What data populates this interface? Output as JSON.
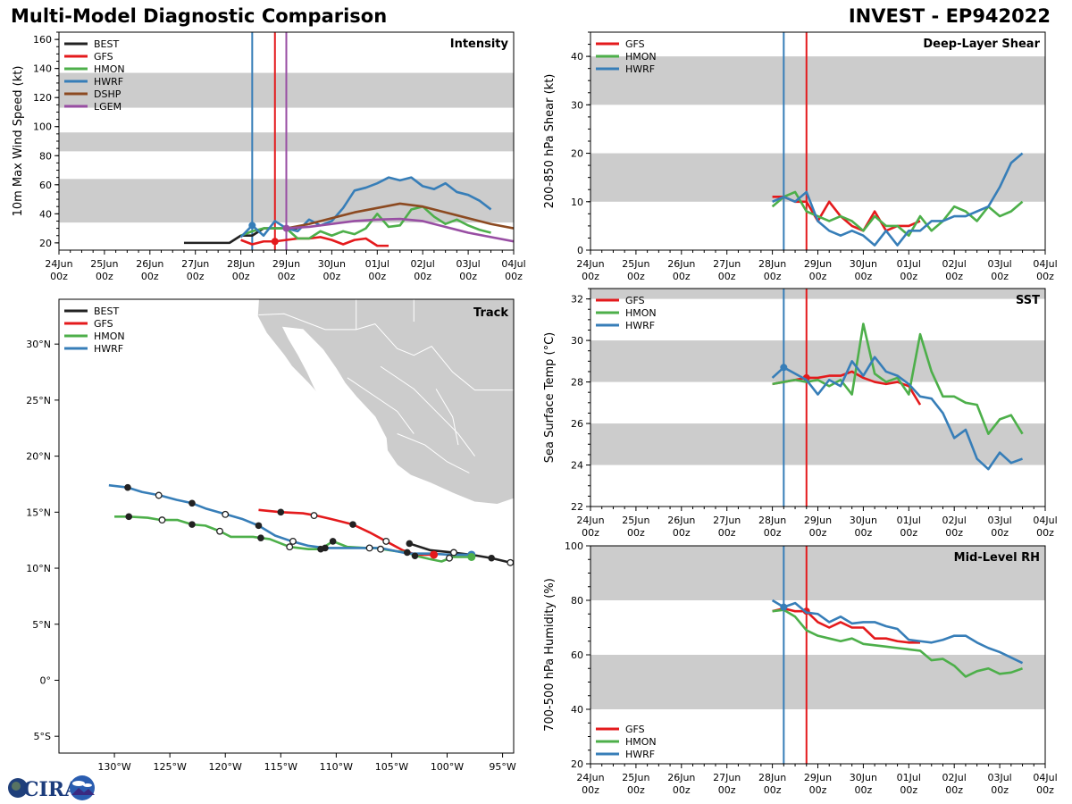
{
  "header": {
    "title_left": "Multi-Model Diagnostic Comparison",
    "title_right": "INVEST - EP942022"
  },
  "colors": {
    "BEST": "#222222",
    "GFS": "#e41a1c",
    "HMON": "#4daf4a",
    "HWRF": "#377eb8",
    "DSHP": "#8c4a21",
    "LGEM": "#984ea3",
    "band": "#cccccc",
    "land": "#cccccc"
  },
  "time_axis": {
    "start_day": 0,
    "end_day": 10,
    "tick_labels": [
      [
        "24Jun",
        "00z"
      ],
      [
        "25Jun",
        "00z"
      ],
      [
        "26Jun",
        "00z"
      ],
      [
        "27Jun",
        "00z"
      ],
      [
        "28Jun",
        "00z"
      ],
      [
        "29Jun",
        "00z"
      ],
      [
        "30Jun",
        "00z"
      ],
      [
        "01Jul",
        "00z"
      ],
      [
        "02Jul",
        "00z"
      ],
      [
        "03Jul",
        "00z"
      ],
      [
        "04Jul",
        "00z"
      ]
    ]
  },
  "logo": {
    "text": "CIRA"
  },
  "chart_data": [
    {
      "id": "intensity",
      "type": "line",
      "title": "Intensity",
      "xlabel": "",
      "ylabel": "10m Max Wind Speed (kt)",
      "ylim": [
        15,
        165
      ],
      "yticks": [
        20,
        40,
        60,
        80,
        100,
        120,
        140,
        160
      ],
      "bands": [
        [
          34,
          64
        ],
        [
          83,
          96
        ],
        [
          113,
          137
        ]
      ],
      "vlines": [
        {
          "x": 4.25,
          "color": "HWRF"
        },
        {
          "x": 4.75,
          "color": "GFS"
        },
        {
          "x": 5.0,
          "color": "LGEM"
        }
      ],
      "legend": [
        "BEST",
        "GFS",
        "HMON",
        "HWRF",
        "DSHP",
        "LGEM"
      ],
      "legend_position": "top-left",
      "series": [
        {
          "name": "BEST",
          "x0": 2.75,
          "dx": 0.25,
          "values": [
            20,
            20,
            20,
            20,
            20,
            25,
            25,
            30,
            30,
            30,
            30
          ]
        },
        {
          "name": "GFS",
          "x0": 4.0,
          "dx": 0.25,
          "values": [
            22,
            19,
            21,
            21,
            22,
            23,
            23,
            24,
            22,
            19,
            22,
            23,
            18,
            18
          ],
          "marker_x": 4.75
        },
        {
          "name": "HMON",
          "x0": 4.0,
          "dx": 0.25,
          "values": [
            25,
            28,
            30,
            30,
            30,
            23,
            23,
            28,
            25,
            28,
            26,
            30,
            40,
            31,
            32,
            43,
            45,
            38,
            33,
            36,
            32,
            29,
            27
          ]
        },
        {
          "name": "HWRF",
          "x0": 4.0,
          "dx": 0.25,
          "values": [
            24,
            32,
            25,
            35,
            30,
            28,
            36,
            32,
            35,
            44,
            56,
            58,
            61,
            65,
            63,
            65,
            59,
            57,
            61,
            55,
            53,
            49,
            43
          ],
          "marker_x": 4.25
        },
        {
          "name": "DSHP",
          "x0": 5.0,
          "dx": 0.5,
          "values": [
            30,
            33,
            37,
            41,
            44,
            47,
            45,
            41,
            37,
            33,
            30,
            27
          ]
        },
        {
          "name": "LGEM",
          "x0": 5.0,
          "dx": 0.5,
          "values": [
            30,
            31,
            33,
            35,
            36,
            36.5,
            35,
            31,
            27,
            24,
            21,
            19
          ],
          "marker_x": 5.0
        }
      ]
    },
    {
      "id": "shear",
      "type": "line",
      "title": "Deep-Layer Shear",
      "xlabel": "",
      "ylabel": "200-850 hPa Shear (kt)",
      "ylim": [
        0,
        45
      ],
      "yticks": [
        0,
        10,
        20,
        30,
        40
      ],
      "bands": [
        [
          10,
          20
        ],
        [
          30,
          40
        ]
      ],
      "vlines": [
        {
          "x": 4.25,
          "color": "HWRF"
        },
        {
          "x": 4.75,
          "color": "GFS"
        }
      ],
      "legend": [
        "GFS",
        "HMON",
        "HWRF"
      ],
      "legend_position": "top-left",
      "series": [
        {
          "name": "GFS",
          "x0": 4.0,
          "dx": 0.25,
          "values": [
            11,
            11,
            10,
            10,
            6,
            10,
            7,
            5,
            4,
            8,
            4,
            5,
            5,
            6
          ]
        },
        {
          "name": "HMON",
          "x0": 4.0,
          "dx": 0.25,
          "values": [
            9,
            11,
            12,
            8,
            7,
            6,
            7,
            6,
            4,
            7,
            5,
            5,
            3,
            7,
            4,
            6,
            9,
            8,
            6,
            9,
            7,
            8,
            10
          ]
        },
        {
          "name": "HWRF",
          "x0": 4.0,
          "dx": 0.25,
          "values": [
            10,
            11,
            10,
            12,
            6,
            4,
            3,
            4,
            3,
            1,
            4,
            1,
            4,
            4,
            6,
            6,
            7,
            7,
            8,
            9,
            13,
            18,
            20
          ]
        }
      ]
    },
    {
      "id": "track",
      "type": "scatter",
      "title": "Track",
      "xlabel": "",
      "ylabel": "",
      "xlim": [
        -135,
        -94
      ],
      "ylim": [
        -6.5,
        34
      ],
      "xticks": [
        -130,
        -125,
        -120,
        -115,
        -110,
        -105,
        -100,
        -95
      ],
      "xtick_labels": [
        "130°W",
        "125°W",
        "120°W",
        "115°W",
        "110°W",
        "105°W",
        "100°W",
        "95°W"
      ],
      "yticks": [
        -5,
        0,
        5,
        10,
        15,
        20,
        25,
        30
      ],
      "ytick_labels": [
        "5°S",
        "0°",
        "5°N",
        "10°N",
        "15°N",
        "20°N",
        "25°N",
        "30°N"
      ],
      "legend": [
        "BEST",
        "GFS",
        "HMON",
        "HWRF"
      ],
      "legend_position": "top-left",
      "series": [
        {
          "name": "BEST",
          "points": [
            [
              -103.4,
              12.2
            ],
            [
              -101.5,
              11.6
            ],
            [
              -99.5,
              11.4
            ],
            [
              -97.8,
              11.2
            ],
            [
              -96.0,
              10.9
            ],
            [
              -94.3,
              10.5
            ],
            [
              -94,
              10.4
            ]
          ]
        },
        {
          "name": "GFS",
          "points": [
            [
              -117,
              15.2
            ],
            [
              -115,
              15.0
            ],
            [
              -113,
              14.9
            ],
            [
              -111.8,
              14.7
            ],
            [
              -110.5,
              14.4
            ],
            [
              -108.5,
              13.9
            ],
            [
              -107,
              13.2
            ],
            [
              -105.5,
              12.4
            ],
            [
              -104,
              11.6
            ],
            [
              -102.8,
              11.2
            ],
            [
              -101.2,
              11.2
            ]
          ]
        },
        {
          "name": "HMON",
          "points": [
            [
              -130,
              14.6
            ],
            [
              -128.7,
              14.6
            ],
            [
              -127,
              14.5
            ],
            [
              -125.8,
              14.3
            ],
            [
              -124.3,
              14.3
            ],
            [
              -123,
              13.9
            ],
            [
              -121.8,
              13.8
            ],
            [
              -120.5,
              13.3
            ],
            [
              -119.5,
              12.8
            ],
            [
              -117.5,
              12.8
            ],
            [
              -116.8,
              12.7
            ],
            [
              -116,
              12.6
            ],
            [
              -114.2,
              11.9
            ],
            [
              -112.5,
              11.7
            ],
            [
              -111.4,
              11.7
            ],
            [
              -110.3,
              12.4
            ],
            [
              -109,
              11.9
            ],
            [
              -107.3,
              11.8
            ],
            [
              -106.5,
              11.8
            ],
            [
              -104.5,
              11.5
            ],
            [
              -103.6,
              11.4
            ],
            [
              -102.8,
              11.1
            ],
            [
              -101.5,
              10.8
            ],
            [
              -100.5,
              10.6
            ],
            [
              -99.5,
              11.0
            ],
            [
              -97.8,
              11.0
            ]
          ]
        },
        {
          "name": "HWRF",
          "points": [
            [
              -130.5,
              17.4
            ],
            [
              -128.8,
              17.2
            ],
            [
              -127.5,
              16.8
            ],
            [
              -125.9,
              16.5
            ],
            [
              -124.4,
              16.1
            ],
            [
              -123,
              15.8
            ],
            [
              -121.7,
              15.3
            ],
            [
              -119.9,
              14.8
            ],
            [
              -118.5,
              14.4
            ],
            [
              -117,
              13.8
            ],
            [
              -115.5,
              12.9
            ],
            [
              -114,
              12.4
            ],
            [
              -112.5,
              12.0
            ],
            [
              -111,
              11.8
            ],
            [
              -109,
              11.8
            ],
            [
              -107.3,
              11.8
            ],
            [
              -106,
              11.8
            ],
            [
              -105,
              11.6
            ],
            [
              -103.5,
              11.3
            ],
            [
              -101.5,
              11.3
            ],
            [
              -99.8,
              11.2
            ],
            [
              -97.8,
              11.2
            ]
          ]
        }
      ],
      "markers": [
        {
          "series": "HWRF",
          "filled": true,
          "points": [
            [
              -128.8,
              17.2
            ],
            [
              -123,
              15.8
            ],
            [
              -117,
              13.8
            ],
            [
              -111,
              11.8
            ]
          ]
        },
        {
          "series": "HWRF",
          "filled": false,
          "points": [
            [
              -126,
              16.5
            ],
            [
              -120,
              14.8
            ],
            [
              -113.9,
              12.4
            ],
            [
              -107.0,
              11.8
            ],
            [
              -105.5,
              12.4
            ]
          ]
        },
        {
          "series": "HMON",
          "filled": true,
          "points": [
            [
              -128.7,
              14.6
            ],
            [
              -123,
              13.9
            ],
            [
              -116.8,
              12.7
            ],
            [
              -111.4,
              11.7
            ],
            [
              -110.3,
              12.4
            ]
          ]
        },
        {
          "series": "HMON",
          "filled": false,
          "points": [
            [
              -125.7,
              14.3
            ],
            [
              -120.5,
              13.3
            ],
            [
              -114.2,
              11.9
            ],
            [
              -106.0,
              11.7
            ]
          ]
        },
        {
          "series": "GFS",
          "filled": true,
          "points": [
            [
              -115,
              15.0
            ],
            [
              -108.5,
              13.9
            ]
          ]
        },
        {
          "series": "GFS",
          "filled": false,
          "points": [
            [
              -112,
              14.7
            ]
          ]
        },
        {
          "series": "BEST",
          "filled": true,
          "points": [
            [
              -103.4,
              12.2
            ],
            [
              -103.6,
              11.4
            ],
            [
              -102.9,
              11.1
            ],
            [
              -96.0,
              10.9
            ]
          ]
        },
        {
          "series": "BEST",
          "filled": false,
          "points": [
            [
              -99.8,
              10.9
            ],
            [
              -99.4,
              11.4
            ],
            [
              -94.3,
              10.5
            ]
          ]
        },
        {
          "series": "GFS",
          "filled": true,
          "current": true,
          "points": [
            [
              -101.2,
              11.2
            ]
          ]
        },
        {
          "series": "HWRF",
          "filled": true,
          "current": true,
          "points": [
            [
              -97.8,
              11.2
            ]
          ]
        },
        {
          "series": "HMON",
          "filled": true,
          "current": true,
          "points": [
            [
              -97.8,
              11.0
            ]
          ]
        }
      ]
    },
    {
      "id": "sst",
      "type": "line",
      "title": "SST",
      "xlabel": "",
      "ylabel": "Sea Surface Temp (°C)",
      "ylim": [
        22,
        32.5
      ],
      "yticks": [
        22,
        24,
        26,
        28,
        30,
        32
      ],
      "bands": [
        [
          24,
          26
        ],
        [
          28,
          30
        ],
        [
          32,
          33
        ]
      ],
      "vlines": [
        {
          "x": 4.25,
          "color": "HWRF"
        },
        {
          "x": 4.75,
          "color": "GFS"
        }
      ],
      "legend": [
        "GFS",
        "HMON",
        "HWRF"
      ],
      "legend_position": "top-left",
      "series": [
        {
          "name": "GFS",
          "x0": 4.0,
          "dx": 0.25,
          "values": [
            27.9,
            28.0,
            28.1,
            28.2,
            28.2,
            28.3,
            28.3,
            28.5,
            28.2,
            28.0,
            27.9,
            28.0,
            27.8,
            26.9
          ],
          "marker_x": 4.75
        },
        {
          "name": "HMON",
          "x0": 4.0,
          "dx": 0.25,
          "values": [
            27.9,
            28.0,
            28.1,
            28.0,
            28.1,
            27.8,
            28.1,
            27.4,
            30.8,
            28.4,
            28.0,
            28.2,
            27.4,
            30.3,
            28.5,
            27.3,
            27.3,
            27.0,
            26.9,
            25.5,
            26.2,
            26.4,
            25.5
          ]
        },
        {
          "name": "HWRF",
          "x0": 4.0,
          "dx": 0.25,
          "values": [
            28.2,
            28.7,
            28.4,
            28.1,
            27.4,
            28.1,
            27.8,
            29.0,
            28.3,
            29.2,
            28.5,
            28.3,
            27.9,
            27.3,
            27.2,
            26.5,
            25.3,
            25.7,
            24.3,
            23.8,
            24.6,
            24.1,
            24.3
          ],
          "marker_x": 4.25
        }
      ]
    },
    {
      "id": "rh",
      "type": "line",
      "title": "Mid-Level RH",
      "xlabel": "",
      "ylabel": "700-500 hPa Humidity (%)",
      "ylim": [
        20,
        100
      ],
      "yticks": [
        20,
        40,
        60,
        80,
        100
      ],
      "bands": [
        [
          40,
          60
        ],
        [
          80,
          100
        ]
      ],
      "vlines": [
        {
          "x": 4.25,
          "color": "HWRF"
        },
        {
          "x": 4.75,
          "color": "GFS"
        }
      ],
      "legend": [
        "GFS",
        "HMON",
        "HWRF"
      ],
      "legend_position": "bottom-left",
      "series": [
        {
          "name": "GFS",
          "x0": 4.0,
          "dx": 0.25,
          "values": [
            76,
            77,
            76,
            76,
            72,
            70,
            72,
            70,
            70,
            66,
            66,
            65,
            64.5,
            64.5
          ],
          "marker_x": 4.75
        },
        {
          "name": "HMON",
          "x0": 4.0,
          "dx": 0.25,
          "values": [
            76,
            76.5,
            74,
            69,
            67,
            66,
            65,
            66,
            64,
            63.5,
            63,
            62.5,
            62,
            61.5,
            58,
            58.5,
            56,
            52,
            54,
            55,
            53,
            53.5,
            55
          ]
        },
        {
          "name": "HWRF",
          "x0": 4.0,
          "dx": 0.25,
          "values": [
            80,
            77.5,
            79,
            75.5,
            75,
            72,
            74,
            71.5,
            72,
            72,
            70.5,
            69.5,
            65.5,
            65,
            64.5,
            65.5,
            67,
            67,
            64.5,
            62.5,
            61,
            59,
            57
          ],
          "marker_x": 4.25
        }
      ]
    }
  ]
}
